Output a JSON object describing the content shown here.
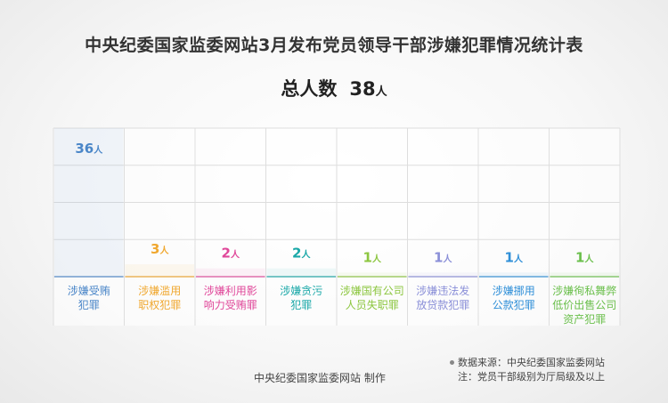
{
  "title": "中央纪委国家监委网站3月发布党员领导干部涉嫌犯罪情况统计表",
  "total": {
    "label": "总人数",
    "value": "38",
    "unit": "人"
  },
  "chart_data": {
    "type": "bar",
    "title": "中央纪委国家监委网站3月发布党员领导干部涉嫌犯罪情况统计表",
    "unit": "人",
    "categories": [
      [
        "涉嫌受贿",
        "犯罪"
      ],
      [
        "涉嫌滥用",
        "职权犯罪"
      ],
      [
        "涉嫌利用影",
        "响力受贿罪"
      ],
      [
        "涉嫌贪污",
        "犯罪"
      ],
      [
        "涉嫌国有公司",
        "人员失职罪"
      ],
      [
        "涉嫌违法发",
        "放贷款犯罪"
      ],
      [
        "涉嫌挪用",
        "公款犯罪"
      ],
      [
        "涉嫌徇私舞弊",
        "低价出售公司",
        "资产犯罪"
      ]
    ],
    "values": [
      36,
      3,
      2,
      2,
      1,
      1,
      1,
      1
    ],
    "colors": [
      "#4a86c8",
      "#f0a830",
      "#e0489a",
      "#1aa8a8",
      "#8cc63f",
      "#8a8fd8",
      "#2f8fd8",
      "#6abf4b"
    ],
    "ylim": [
      0,
      36
    ],
    "grid": true
  },
  "source": {
    "line1": "数据来源：中央纪委国家监委网站",
    "line2": "注：党员干部级别为厅局级及以上"
  },
  "credit": "中央纪委国家监委网站 制作"
}
